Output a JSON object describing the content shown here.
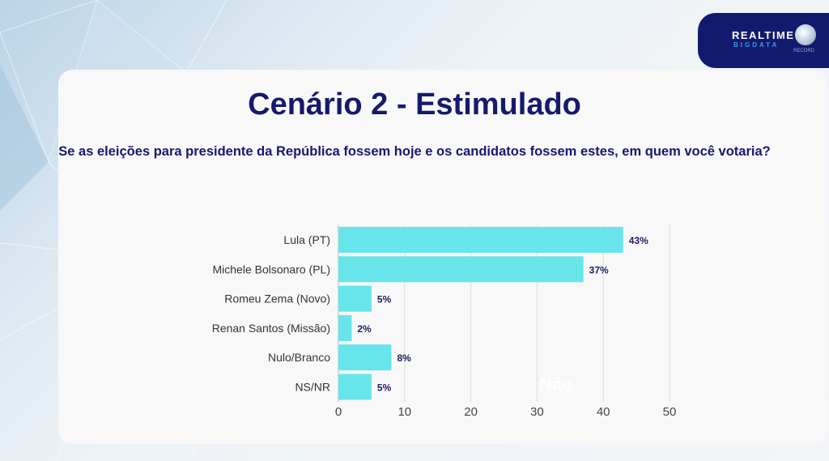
{
  "brand": {
    "name_line1": "REALTIME",
    "name_line2": "BIGDATA",
    "partner": "RECORD"
  },
  "watermark": "Não",
  "colors": {
    "bar": "#68e5ea",
    "title": "#151a6b"
  },
  "chart_data": {
    "type": "bar",
    "orientation": "horizontal",
    "title": "Cenário 2 - Estimulado",
    "subtitle": "Se as eleições para presidente da República fossem hoje e os candidatos fossem estes, em quem você votaria?",
    "categories": [
      "Lula (PT)",
      "Michele Bolsonaro (PL)",
      "Romeu Zema (Novo)",
      "Renan Santos (Missão)",
      "Nulo/Branco",
      "NS/NR"
    ],
    "values": [
      43,
      37,
      5,
      2,
      8,
      5
    ],
    "data_labels": [
      "43%",
      "37%",
      "5%",
      "2%",
      "8%",
      "5%"
    ],
    "xlim": [
      0,
      50
    ],
    "xticks": [
      "0",
      "10",
      "20",
      "30",
      "40",
      "50"
    ],
    "grid": true,
    "xlabel": "",
    "ylabel": ""
  }
}
